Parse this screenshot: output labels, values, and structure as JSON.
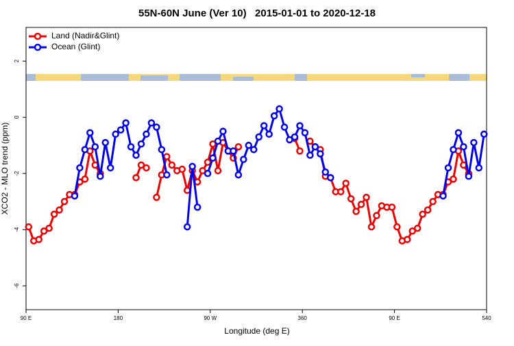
{
  "chart_data": {
    "type": "line",
    "title": "55N-60N June (Ver 10)   2015-01-01 to 2020-12-18",
    "xlabel": "Longitude (deg E)",
    "ylabel": "XCO2 - MLO trend (ppm)",
    "x": [
      92.5,
      97.5,
      102.5,
      107.5,
      112.5,
      117.5,
      122.5,
      127.5,
      132.5,
      137.5,
      142.5,
      147.5,
      152.5,
      157.5,
      162.5,
      167.5,
      172.5,
      177.5,
      182.5,
      187.5,
      192.5,
      197.5,
      202.5,
      207.5,
      212.5,
      217.5,
      222.5,
      227.5,
      232.5,
      237.5,
      242.5,
      247.5,
      252.5,
      257.5,
      262.5,
      267.5,
      272.5,
      277.5,
      282.5,
      287.5,
      292.5,
      297.5,
      302.5,
      307.5,
      312.5,
      317.5,
      322.5,
      327.5,
      332.5,
      337.5,
      342.5,
      347.5,
      352.5,
      357.5,
      362.5,
      367.5,
      372.5,
      377.5,
      382.5,
      387.5,
      392.5,
      397.5,
      402.5,
      407.5,
      412.5,
      417.5,
      422.5,
      427.5,
      432.5,
      437.5,
      442.5,
      447.5,
      452.5,
      457.5,
      462.5,
      467.5,
      472.5,
      477.5,
      482.5,
      487.5,
      492.5,
      497.5,
      502.5,
      507.5,
      512.5,
      517.5,
      522.5,
      527.5,
      532.5,
      537.5
    ],
    "series": [
      {
        "name": "Land (Nadir&Glint)",
        "color": "#ee0000",
        "values": [
          -3.9,
          -4.4,
          -4.35,
          -4.05,
          -3.95,
          -3.45,
          -3.3,
          -3.0,
          -2.75,
          -2.75,
          -2.3,
          -2.2,
          -1.2,
          -1.7,
          -2.0,
          null,
          null,
          null,
          null,
          null,
          null,
          -2.15,
          -1.7,
          -1.8,
          null,
          -2.85,
          -2.05,
          -1.4,
          -1.7,
          -1.9,
          -1.85,
          -2.6,
          -1.9,
          -2.3,
          -1.9,
          -1.6,
          -0.95,
          -1.9,
          -0.9,
          -1.2,
          -1.45,
          -1.05,
          null,
          null,
          null,
          null,
          null,
          null,
          null,
          null,
          null,
          null,
          -0.75,
          -1.2,
          null,
          -0.85,
          -1.05,
          -1.15,
          -2.1,
          -2.15,
          -2.65,
          -2.65,
          -2.35,
          -2.9,
          -3.35,
          -3.1,
          -2.85,
          -3.9,
          -3.5,
          -3.15,
          -3.2,
          -3.2,
          -3.9,
          -4.4,
          -4.35,
          -4.05,
          -3.95,
          -3.45,
          -3.3,
          -3.0,
          -2.75,
          -2.75,
          -2.3,
          -2.2,
          -1.2,
          -1.7,
          -2.0,
          null,
          null,
          null
        ]
      },
      {
        "name": "Ocean (Glint)",
        "color": "#0000ee",
        "values": [
          null,
          null,
          null,
          null,
          null,
          null,
          null,
          null,
          null,
          -2.8,
          -1.8,
          -1.15,
          -0.55,
          -1.05,
          -2.1,
          -0.9,
          -1.8,
          -0.6,
          -0.45,
          -0.2,
          -1.05,
          -1.35,
          -0.95,
          -0.6,
          -0.2,
          -0.35,
          -1.15,
          -2.05,
          null,
          null,
          null,
          -3.9,
          -1.75,
          -3.2,
          null,
          -2.0,
          -1.45,
          -0.85,
          -0.5,
          -1.2,
          -1.2,
          -2.05,
          -1.5,
          -1.0,
          -1.15,
          -0.7,
          -0.3,
          -0.6,
          0.05,
          0.3,
          -0.35,
          -0.8,
          -0.7,
          -0.3,
          -0.55,
          -1.35,
          -1.05,
          -1.3,
          -1.95,
          -2.15,
          null,
          null,
          null,
          null,
          null,
          null,
          null,
          null,
          null,
          null,
          null,
          null,
          null,
          null,
          null,
          null,
          null,
          null,
          null,
          null,
          null,
          -2.8,
          -1.8,
          -1.15,
          -0.55,
          -1.05,
          -2.1,
          -0.9,
          -1.8,
          -0.6
        ]
      }
    ],
    "xlim": [
      90,
      540
    ],
    "ylim": [
      -6.85,
      3.2
    ],
    "xticks": [
      {
        "value": 90,
        "label": "90 E"
      },
      180,
      {
        "value": 270,
        "label": "90 W"
      },
      360,
      {
        "value": 450,
        "label": "90 E"
      },
      540
    ],
    "yticks": [
      -6,
      -4,
      -2,
      0,
      2
    ],
    "legend": "topleft",
    "grid": false
  }
}
